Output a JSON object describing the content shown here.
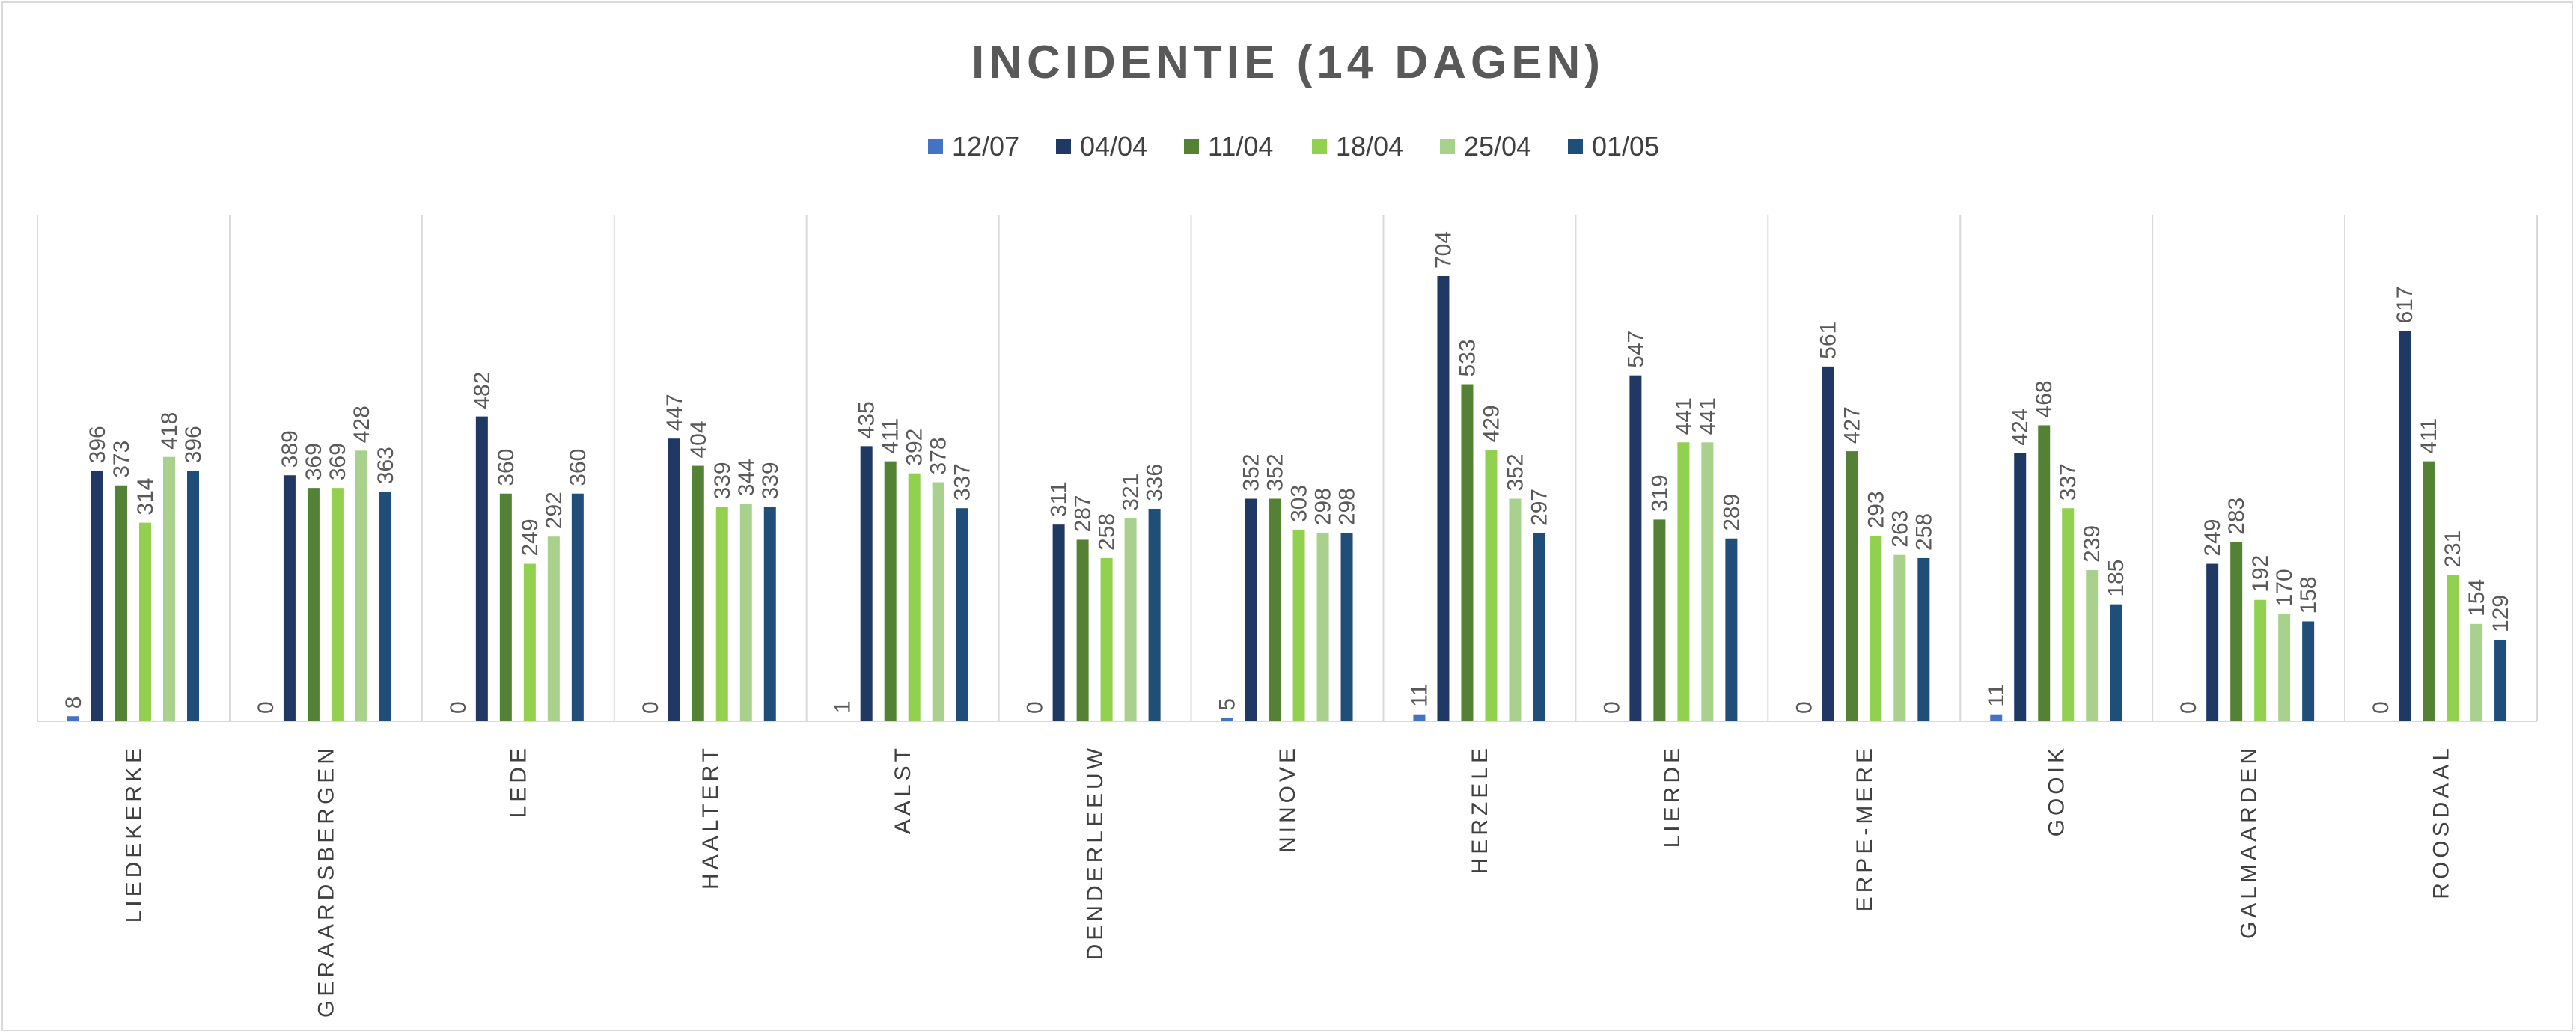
{
  "chart_data": {
    "type": "bar",
    "title": "INCIDENTIE (14 DAGEN)",
    "xlabel": "",
    "ylabel": "",
    "ylim": [
      0,
      720
    ],
    "grid": false,
    "legend_position": "top",
    "categories": [
      "LIEDEKERKE",
      "GERAARDSBERGEN",
      "LEDE",
      "HAALTERT",
      "AALST",
      "DENDERLEEUW",
      "NINOVE",
      "HERZELE",
      "LIERDE",
      "ERPE-MERE",
      "GOOIK",
      "GALMAARDEN",
      "ROOSDAAL"
    ],
    "series": [
      {
        "name": "12/07",
        "color": "#4472c4",
        "values": [
          8,
          0,
          0,
          0,
          1,
          0,
          5,
          11,
          0,
          0,
          11,
          0,
          0
        ]
      },
      {
        "name": "04/04",
        "color": "#1f3864",
        "values": [
          396,
          389,
          482,
          447,
          435,
          311,
          352,
          704,
          547,
          561,
          424,
          249,
          617
        ]
      },
      {
        "name": "11/04",
        "color": "#548235",
        "values": [
          373,
          369,
          360,
          404,
          411,
          287,
          352,
          533,
          319,
          427,
          468,
          283,
          411
        ]
      },
      {
        "name": "18/04",
        "color": "#92d050",
        "values": [
          314,
          369,
          249,
          339,
          392,
          258,
          303,
          429,
          441,
          293,
          337,
          192,
          231
        ]
      },
      {
        "name": "25/04",
        "color": "#a9d18e",
        "values": [
          418,
          428,
          292,
          344,
          378,
          321,
          298,
          352,
          441,
          263,
          239,
          170,
          154
        ]
      },
      {
        "name": "01/05",
        "color": "#1f4e79",
        "values": [
          396,
          363,
          360,
          339,
          337,
          336,
          298,
          297,
          289,
          258,
          185,
          158,
          129
        ]
      }
    ]
  }
}
